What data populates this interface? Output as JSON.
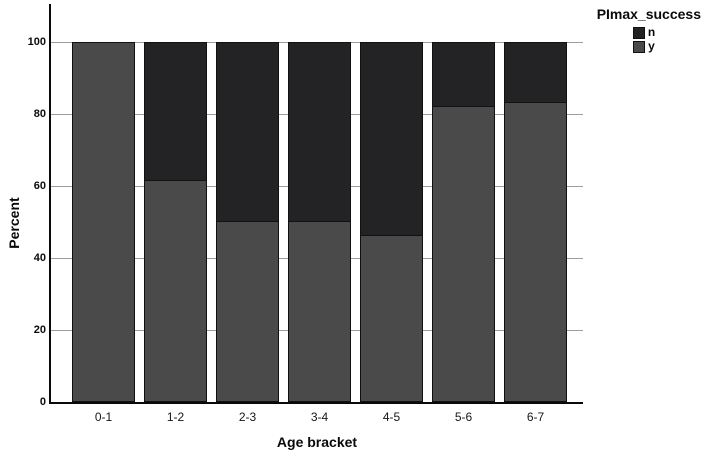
{
  "chart_data": {
    "type": "bar",
    "variant": "stacked-percent",
    "title": "",
    "xlabel": "Age bracket",
    "ylabel": "Percent",
    "categories": [
      "0-1",
      "1-2",
      "2-3",
      "3-4",
      "4-5",
      "5-6",
      "6-7"
    ],
    "series": [
      {
        "name": "n",
        "color": "#232326",
        "values": [
          0,
          38.5,
          50,
          50,
          54,
          18,
          17
        ]
      },
      {
        "name": "y",
        "color": "#4a4a4a",
        "values": [
          100,
          61.5,
          50,
          50,
          46,
          82,
          83
        ]
      }
    ],
    "stack_order_top_to_bottom": [
      "n",
      "y"
    ],
    "ylim": [
      0,
      100
    ],
    "yticks": [
      0,
      20,
      40,
      60,
      80,
      100
    ],
    "grid": "horizontal",
    "legend": {
      "title": "PImax_success",
      "position": "top-right",
      "entries": [
        {
          "label": "n",
          "color": "#232326"
        },
        {
          "label": "y",
          "color": "#4a4a4a"
        }
      ]
    }
  },
  "colors": {
    "background": "#ffffff",
    "axis": "#0a0a0a",
    "gridline": "#9c9c9c",
    "bar_border": "#111111"
  }
}
